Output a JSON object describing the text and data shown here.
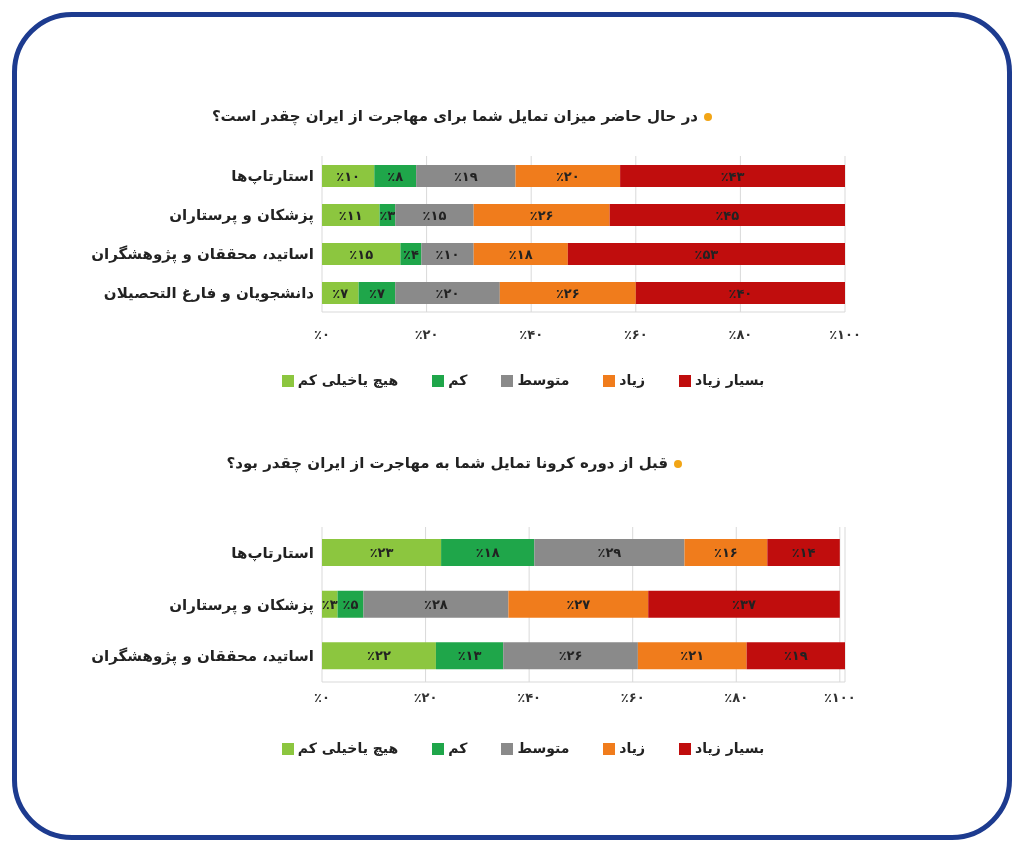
{
  "chart_data": [
    {
      "type": "bar",
      "orientation": "horizontal",
      "stacked": true,
      "title": "در حال حاضر میزان تمایل شما برای مهاجرت از ایران چقدر است؟",
      "categories": [
        "استارتاپ‌ها",
        "پزشکان و پرستاران",
        "اساتید، محققان و پژوهشگران",
        "دانشجویان و فارغ التحصیلان"
      ],
      "series": [
        {
          "name": "هیچ یاخیلی کم",
          "color": "#8cc63f",
          "values": [
            10,
            11,
            15,
            7
          ],
          "value_labels": [
            "٪۱۰",
            "٪۱۱",
            "٪۱۵",
            "٪۷"
          ]
        },
        {
          "name": "کم",
          "color": "#1fa64a",
          "values": [
            8,
            3,
            4,
            7
          ],
          "value_labels": [
            "٪۸",
            "٪۳",
            "٪۴",
            "٪۷"
          ]
        },
        {
          "name": "متوسط",
          "color": "#8a8a8a",
          "values": [
            19,
            15,
            10,
            20
          ],
          "value_labels": [
            "٪۱۹",
            "٪۱۵",
            "٪۱۰",
            "٪۲۰"
          ]
        },
        {
          "name": "زیاد",
          "color": "#f07c1c",
          "values": [
            20,
            26,
            18,
            26
          ],
          "value_labels": [
            "٪۲۰",
            "٪۲۶",
            "٪۱۸",
            "٪۲۶"
          ]
        },
        {
          "name": "بسیار زیاد",
          "color": "#c00d0d",
          "values": [
            43,
            45,
            53,
            40
          ],
          "value_labels": [
            "٪۴۳",
            "٪۴۵",
            "٪۵۳",
            "٪۴۰"
          ]
        }
      ],
      "xlim": [
        0,
        100
      ],
      "xticks": [
        {
          "value": 0,
          "label": "٪۰"
        },
        {
          "value": 20,
          "label": "٪۲۰"
        },
        {
          "value": 40,
          "label": "٪۴۰"
        },
        {
          "value": 60,
          "label": "٪۶۰"
        },
        {
          "value": 80,
          "label": "٪۸۰"
        },
        {
          "value": 100,
          "label": "٪۱۰۰"
        }
      ],
      "grid": "x",
      "legend": "bottom"
    },
    {
      "type": "bar",
      "orientation": "horizontal",
      "stacked": true,
      "title": "قبل از دوره کرونا تمایل شما به مهاجرت از ایران چقدر بود؟",
      "categories": [
        "استارتاپ‌ها",
        "پزشکان و پرستاران",
        "اساتید، محققان و پژوهشگران"
      ],
      "series": [
        {
          "name": "هیچ یاخیلی کم",
          "color": "#8cc63f",
          "values": [
            23,
            3,
            22
          ],
          "value_labels": [
            "٪۲۳",
            "٪۳",
            "٪۲۲"
          ]
        },
        {
          "name": "کم",
          "color": "#1fa64a",
          "values": [
            18,
            5,
            13
          ],
          "value_labels": [
            "٪۱۸",
            "٪۵",
            "٪۱۳"
          ]
        },
        {
          "name": "متوسط",
          "color": "#8a8a8a",
          "values": [
            29,
            28,
            26
          ],
          "value_labels": [
            "٪۲۹",
            "٪۲۸",
            "٪۲۶"
          ]
        },
        {
          "name": "زیاد",
          "color": "#f07c1c",
          "values": [
            16,
            27,
            21
          ],
          "value_labels": [
            "٪۱۶",
            "٪۲۷",
            "٪۲۱"
          ]
        },
        {
          "name": "بسیار زیاد",
          "color": "#c00d0d",
          "values": [
            14,
            37,
            19
          ],
          "value_labels": [
            "٪۱۴",
            "٪۳۷",
            "٪۱۹"
          ]
        }
      ],
      "xlim": [
        0,
        101
      ],
      "xticks": [
        {
          "value": 0,
          "label": "٪۰"
        },
        {
          "value": 20,
          "label": "٪۲۰"
        },
        {
          "value": 40,
          "label": "٪۴۰"
        },
        {
          "value": 60,
          "label": "٪۶۰"
        },
        {
          "value": 80,
          "label": "٪۸۰"
        },
        {
          "value": 100,
          "label": "٪۱۰۰"
        }
      ],
      "grid": "x",
      "legend": "bottom"
    }
  ]
}
